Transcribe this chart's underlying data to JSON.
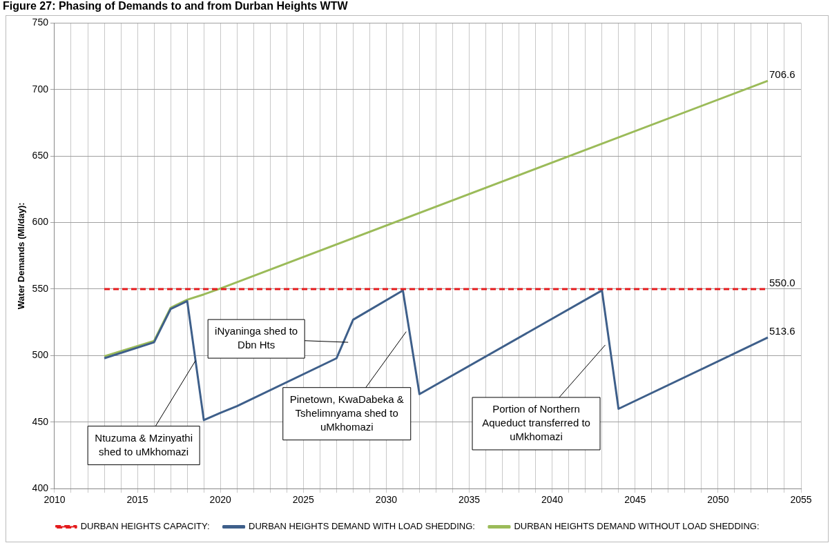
{
  "chart_data": {
    "type": "line",
    "title": "Figure 27: Phasing of Demands to and from Durban Heights WTW",
    "ylabel": "Water Demands (Ml/day):",
    "xlim": [
      2010,
      2055
    ],
    "xticks": [
      2010,
      {
        "value": 2011,
        "label": null
      },
      {
        "value": 2012,
        "label": null
      },
      {
        "value": 2013,
        "label": null
      },
      {
        "value": 2014,
        "label": null
      },
      2015,
      {
        "value": 2016,
        "label": null
      },
      {
        "value": 2017,
        "label": null
      },
      {
        "value": 2018,
        "label": null
      },
      {
        "value": 2019,
        "label": null
      },
      2020,
      {
        "value": 2021,
        "label": null
      },
      {
        "value": 2022,
        "label": null
      },
      {
        "value": 2023,
        "label": null
      },
      {
        "value": 2024,
        "label": null
      },
      2025,
      {
        "value": 2026,
        "label": null
      },
      {
        "value": 2027,
        "label": null
      },
      {
        "value": 2028,
        "label": null
      },
      {
        "value": 2029,
        "label": null
      },
      2030,
      {
        "value": 2031,
        "label": null
      },
      {
        "value": 2032,
        "label": null
      },
      {
        "value": 2033,
        "label": null
      },
      {
        "value": 2034,
        "label": null
      },
      2035,
      {
        "value": 2036,
        "label": null
      },
      {
        "value": 2037,
        "label": null
      },
      {
        "value": 2038,
        "label": null
      },
      {
        "value": 2039,
        "label": null
      },
      2040,
      {
        "value": 2041,
        "label": null
      },
      {
        "value": 2042,
        "label": null
      },
      {
        "value": 2043,
        "label": null
      },
      {
        "value": 2044,
        "label": null
      },
      2045,
      {
        "value": 2046,
        "label": null
      },
      {
        "value": 2047,
        "label": null
      },
      {
        "value": 2048,
        "label": null
      },
      {
        "value": 2049,
        "label": null
      },
      2050,
      {
        "value": 2051,
        "label": null
      },
      {
        "value": 2052,
        "label": null
      },
      {
        "value": 2053,
        "label": null
      },
      {
        "value": 2054,
        "label": null
      },
      2055
    ],
    "ylim": [
      400,
      750
    ],
    "yticks": [
      400,
      450,
      500,
      550,
      600,
      650,
      700,
      750
    ],
    "grid": true,
    "legend": "bottom",
    "marker": "none",
    "series": [
      {
        "name": "DURBAN HEIGHTS CAPACITY:",
        "color": "#e41a1c",
        "line_style": "dashed",
        "x": [
          2013,
          2053
        ],
        "values": [
          550,
          550
        ],
        "value_labels": [
          null,
          "550.0"
        ]
      },
      {
        "name": "DURBAN HEIGHTS DEMAND WITH LOAD SHEDDING:",
        "color": "#3e5f8a",
        "line_style": "solid",
        "x": [
          2013,
          2016,
          2017,
          2018,
          2019,
          2020,
          2021,
          2027,
          2028,
          2031,
          2032,
          2043,
          2044,
          2053
        ],
        "values": [
          498,
          510,
          535,
          541,
          451.5,
          457,
          462,
          498,
          527,
          549,
          471,
          549,
          460,
          513.6
        ],
        "value_labels": [
          null,
          null,
          null,
          null,
          null,
          null,
          null,
          null,
          null,
          null,
          null,
          null,
          null,
          "513.6"
        ]
      },
      {
        "name": "DURBAN HEIGHTS DEMAND WITHOUT LOAD SHEDDING:",
        "color": "#9bbb59",
        "line_style": "solid",
        "x": [
          2013,
          2016,
          2017,
          2018,
          2019,
          2020,
          2053
        ],
        "values": [
          499.5,
          511,
          536,
          542,
          546,
          550.5,
          706.6
        ],
        "value_labels": [
          null,
          null,
          null,
          null,
          null,
          null,
          "706.6"
        ]
      }
    ],
    "annotations": [
      {
        "text": "Ntuzuma & Mzinyathi shed to uMkhomazi",
        "x": 2018.5,
        "y": 496.25
      },
      {
        "text": "iNyaninga shed to Dbn Hts",
        "x": 2027.7,
        "y": 510
      },
      {
        "text": "Pinetown, KwaDabeka & Tshelimnyama shed to uMkhomazi",
        "x": 2031.2,
        "y": 518
      },
      {
        "text": "Portion of Northern Aqueduct transferred to uMkhomazi",
        "x": 2043.2,
        "y": 508
      }
    ]
  }
}
